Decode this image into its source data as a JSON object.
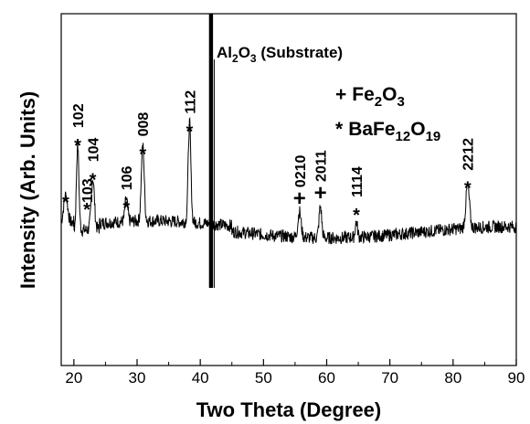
{
  "chart_data": {
    "type": "line",
    "xlabel": "Two Theta (Degree)",
    "ylabel": "Intensity (Arb. Units)",
    "xlim": [
      18,
      90
    ],
    "x_ticks": [
      20,
      30,
      40,
      50,
      60,
      70,
      80,
      90
    ],
    "x_tick_labels": [
      "20",
      "30",
      "40",
      "50",
      "60",
      "70",
      "80",
      "90"
    ],
    "y_ticks_shown": false,
    "grid": false,
    "background_level": 0.18,
    "peaks": [
      {
        "x": 18.7,
        "height": 0.1,
        "width": 0.45,
        "label": "",
        "marker": "*"
      },
      {
        "x": 20.6,
        "height": 0.3,
        "width": 0.28,
        "label": "102",
        "marker": "*"
      },
      {
        "x": 23.0,
        "height": 0.18,
        "width": 0.35,
        "label": "104",
        "marker": "*"
      },
      {
        "x": 28.3,
        "height": 0.08,
        "width": 0.3,
        "label": "106",
        "marker": "*"
      },
      {
        "x": 30.9,
        "height": 0.27,
        "width": 0.32,
        "label": "008",
        "marker": "*"
      },
      {
        "x": 38.3,
        "height": 0.35,
        "width": 0.3,
        "label": "112",
        "marker": "*"
      },
      {
        "x": 41.7,
        "height": 1.35,
        "width": 0.2,
        "label": "",
        "marker": ""
      },
      {
        "x": 55.7,
        "height": 0.09,
        "width": 0.35,
        "label": "0210",
        "marker": "+"
      },
      {
        "x": 59.0,
        "height": 0.11,
        "width": 0.3,
        "label": "2011",
        "marker": "+"
      },
      {
        "x": 64.7,
        "height": 0.055,
        "width": 0.25,
        "label": "1114",
        "marker": "*"
      },
      {
        "x": 82.3,
        "height": 0.15,
        "width": 0.4,
        "label": "2212",
        "marker": "*"
      }
    ],
    "extra_label": {
      "text": "103",
      "marker": "*",
      "near_x": 20.6
    },
    "annotations": {
      "substrate": {
        "prefix": "Al",
        "sub1": "2",
        "mid": "O",
        "sub2": "3",
        "suffix": " (Substrate)"
      }
    },
    "legend": [
      {
        "marker": "+",
        "base": "Fe",
        "sub1": "2",
        "mid": "O",
        "sub2": "3",
        "tail": "",
        "sub3": ""
      },
      {
        "marker": "*",
        "base": "BaFe",
        "sub1": "12",
        "mid": "O",
        "sub2": "19",
        "tail": "",
        "sub3": ""
      }
    ]
  }
}
